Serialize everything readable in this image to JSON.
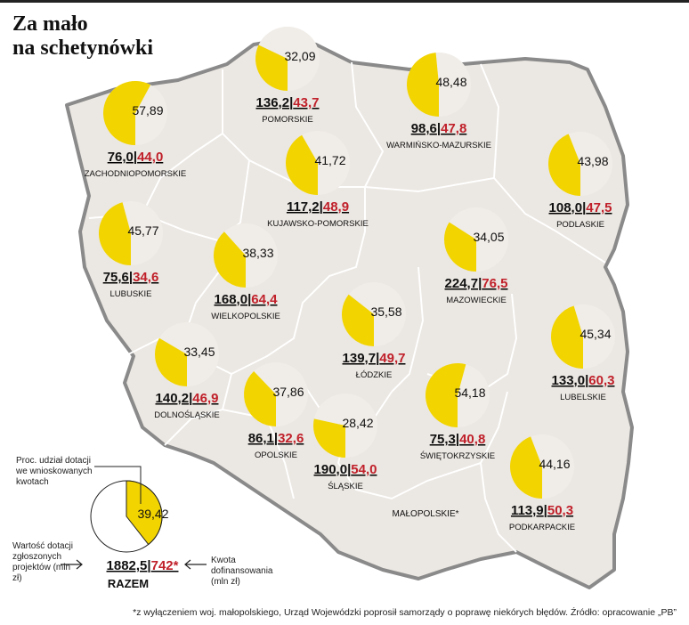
{
  "title_lines": [
    "Za mało",
    "na schetynówki"
  ],
  "footnote": "*z wyłączeniem woj. małopolskiego, Urząd Wojewódzki poprosił samorządy o poprawę niekórych błędów. Źródło: opracowanie „PB”",
  "colors": {
    "map_fill": "#ebe7e2",
    "border": "#8a8a8a",
    "pie_bg": "#f0ece7",
    "pie_fill": "#f2d400",
    "red": "#c0202a",
    "text": "#111111"
  },
  "legend": {
    "pie_label": "Proc. udział dotacji we wnioskowanych kwotach",
    "pie_value": "39,42",
    "left_label": "Wartość dotacji zgłoszonych projektów (mln zł)",
    "right_label": "Kwota dofinansowania (mln zł)",
    "total_black": "1882,5",
    "total_red": "742*",
    "total_name": "RAZEM"
  },
  "malopolskie_label": "MAŁOPOLSKIE*",
  "chart_data": {
    "type": "pie",
    "title": "Za mało na schetynówki",
    "units": "mln zł",
    "total": {
      "requested": 1882.5,
      "granted": 742,
      "percent": 39.42,
      "name": "RAZEM"
    },
    "series": [
      {
        "name": "ZACHODNIOPOMORSKIE",
        "requested": "76,0",
        "granted": "44,0",
        "percent": "57,89",
        "p": 57.89
      },
      {
        "name": "POMORSKIE",
        "requested": "136,2",
        "granted": "43,7",
        "percent": "32,09",
        "p": 32.09
      },
      {
        "name": "WARMIŃSKO-MAZURSKIE",
        "requested": "98,6",
        "granted": "47,8",
        "percent": "48,48",
        "p": 48.48
      },
      {
        "name": "PODLASKIE",
        "requested": "108,0",
        "granted": "47,5",
        "percent": "43,98",
        "p": 43.98
      },
      {
        "name": "KUJAWSKO-POMORSKIE",
        "requested": "117,2",
        "granted": "48,9",
        "percent": "41,72",
        "p": 41.72
      },
      {
        "name": "LUBUSKIE",
        "requested": "75,6",
        "granted": "34,6",
        "percent": "45,77",
        "p": 45.77
      },
      {
        "name": "WIELKOPOLSKIE",
        "requested": "168,0",
        "granted": "64,4",
        "percent": "38,33",
        "p": 38.33
      },
      {
        "name": "MAZOWIECKIE",
        "requested": "224,7",
        "granted": "76,5",
        "percent": "34,05",
        "p": 34.05
      },
      {
        "name": "ŁÓDZKIE",
        "requested": "139,7",
        "granted": "49,7",
        "percent": "35,58",
        "p": 35.58
      },
      {
        "name": "LUBELSKIE",
        "requested": "133,0",
        "granted": "60,3",
        "percent": "45,34",
        "p": 45.34
      },
      {
        "name": "DOLNOŚLĄSKIE",
        "requested": "140,2",
        "granted": "46,9",
        "percent": "33,45",
        "p": 33.45
      },
      {
        "name": "OPOLSKIE",
        "requested": "86,1",
        "granted": "32,6",
        "percent": "37,86",
        "p": 37.86
      },
      {
        "name": "ŚLĄSKIE",
        "requested": "190,0",
        "granted": "54,0",
        "percent": "28,42",
        "p": 28.42
      },
      {
        "name": "ŚWIĘTOKRZYSKIE",
        "requested": "75,3",
        "granted": "40,8",
        "percent": "54,18",
        "p": 54.18
      },
      {
        "name": "PODKARPACKIE",
        "requested": "113,9",
        "granted": "50,3",
        "percent": "44,16",
        "p": 44.16
      }
    ]
  }
}
